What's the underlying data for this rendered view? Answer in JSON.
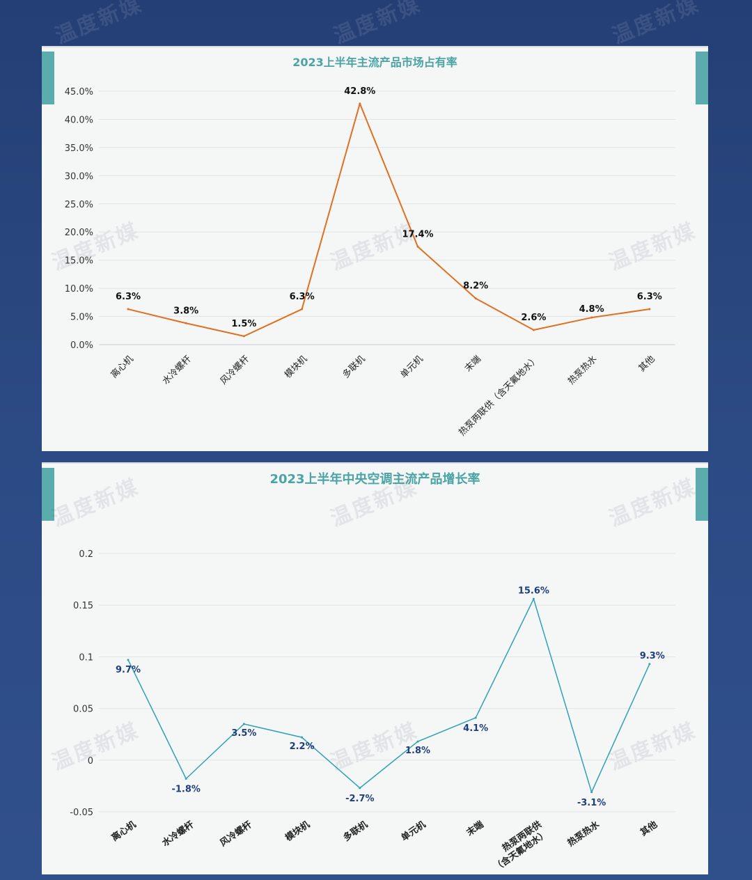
{
  "watermark": "温度新媒",
  "chart_data": [
    {
      "type": "line",
      "title": "2023上半年主流产品市场占有率",
      "categories": [
        "离心机",
        "水冷螺杆",
        "风冷螺杆",
        "模块机",
        "多联机",
        "单元机",
        "末端",
        "热泵两联供（含天氟地水）",
        "热泵热水",
        "其他"
      ],
      "values": [
        6.3,
        3.8,
        1.5,
        6.3,
        42.8,
        17.4,
        8.2,
        2.6,
        4.8,
        6.3
      ],
      "data_labels": [
        "6.3%",
        "3.8%",
        "1.5%",
        "6.3%",
        "42.8%",
        "17.4%",
        "8.2%",
        "2.6%",
        "4.8%",
        "6.3%"
      ],
      "y_ticks": [
        "0.0%",
        "5.0%",
        "10.0%",
        "15.0%",
        "20.0%",
        "25.0%",
        "30.0%",
        "35.0%",
        "40.0%",
        "45.0%"
      ],
      "ylim": [
        0,
        45
      ],
      "grid": true,
      "color": "#e07020"
    },
    {
      "type": "line",
      "title": "2023上半年中央空调主流产品增长率",
      "categories": [
        "离心机",
        "水冷螺杆",
        "风冷螺杆",
        "模块机",
        "多联机",
        "单元机",
        "末端",
        "热泵两联供\n（含天氟地水）",
        "热泵热水",
        "其他"
      ],
      "values": [
        0.097,
        -0.018,
        0.035,
        0.022,
        -0.027,
        0.018,
        0.041,
        0.156,
        -0.031,
        0.093
      ],
      "data_labels": [
        "9.7%",
        "-1.8%",
        "3.5%",
        "2.2%",
        "-2.7%",
        "1.8%",
        "4.1%",
        "15.6%",
        "-3.1%",
        "9.3%"
      ],
      "y_ticks": [
        "-0.05",
        "0",
        "0.05",
        "0.1",
        "0.15",
        "0.2"
      ],
      "ylim": [
        -0.05,
        0.2
      ],
      "grid": true,
      "color": "#2fa0b8",
      "label_color": "#1f3f7a"
    }
  ]
}
